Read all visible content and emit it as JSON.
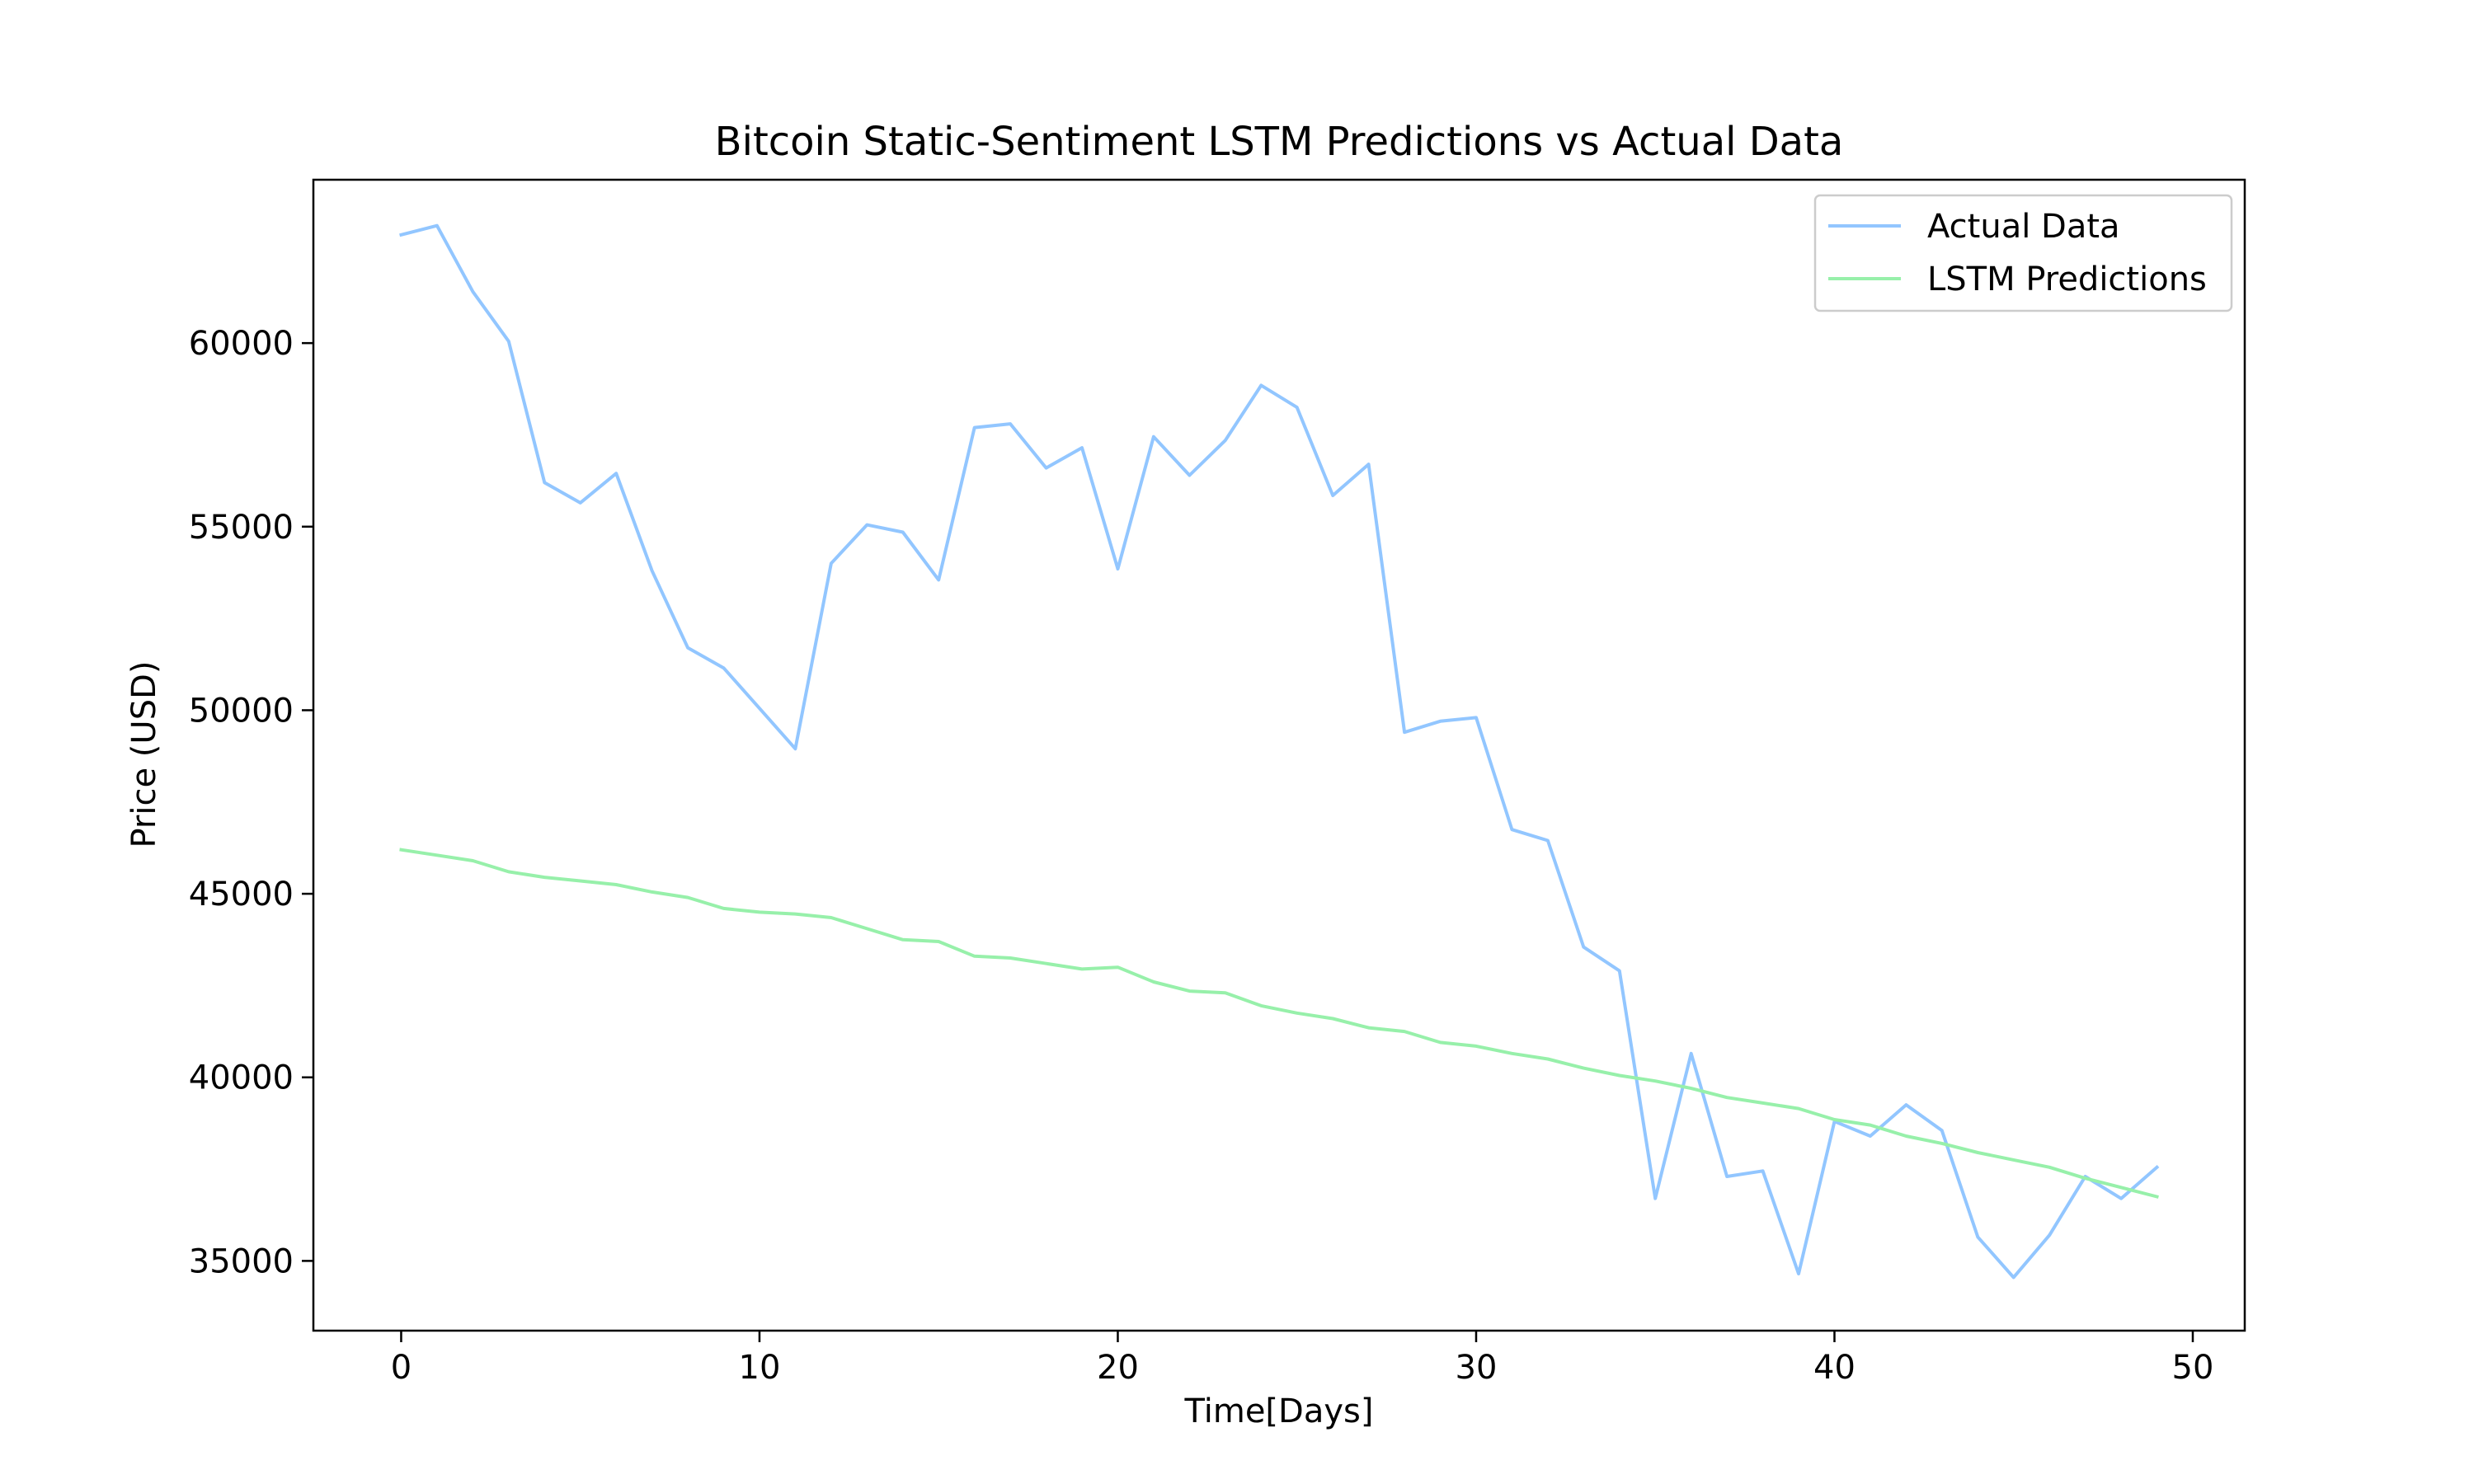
{
  "chart_data": {
    "type": "line",
    "title": "Bitcoin Static-Sentiment LSTM Predictions vs Actual Data",
    "xlabel": "Time[Days]",
    "ylabel": "Price (USD)",
    "xlim": [
      -2.45,
      51.45
    ],
    "ylim": [
      33100,
      64450
    ],
    "xticks": [
      0,
      10,
      20,
      30,
      40,
      50
    ],
    "yticks": [
      35000,
      40000,
      45000,
      50000,
      55000,
      60000
    ],
    "grid": false,
    "legend_position": "top-right",
    "x": [
      0,
      1,
      2,
      3,
      4,
      5,
      6,
      7,
      8,
      9,
      10,
      11,
      12,
      13,
      14,
      15,
      16,
      17,
      18,
      19,
      20,
      21,
      22,
      23,
      24,
      25,
      26,
      27,
      28,
      29,
      30,
      31,
      32,
      33,
      34,
      35,
      36,
      37,
      38,
      39,
      40,
      41,
      42,
      43,
      44,
      45,
      46,
      47,
      48,
      49
    ],
    "series": [
      {
        "name": "Actual Data",
        "color": "#92c6ff",
        "values": [
          62950,
          63200,
          61400,
          60050,
          56200,
          55650,
          56450,
          53800,
          51700,
          51150,
          50050,
          48950,
          54000,
          55050,
          54850,
          53550,
          57700,
          57800,
          56600,
          57150,
          53850,
          57450,
          56400,
          57350,
          58850,
          58250,
          55850,
          56700,
          49400,
          49700,
          49800,
          46750,
          46450,
          43550,
          42900,
          36700,
          40650,
          37300,
          37450,
          34650,
          38800,
          38400,
          39250,
          38550,
          35650,
          34550,
          35700,
          37300,
          36700,
          37550
        ]
      },
      {
        "name": "LSTM Predictions",
        "color": "#97f0aa",
        "values": [
          46200,
          46050,
          45900,
          45600,
          45450,
          45350,
          45250,
          45050,
          44900,
          44600,
          44500,
          44450,
          44350,
          44050,
          43750,
          43700,
          43300,
          43250,
          43100,
          42950,
          43000,
          42600,
          42350,
          42300,
          41950,
          41750,
          41600,
          41350,
          41250,
          40950,
          40850,
          40650,
          40500,
          40250,
          40050,
          39900,
          39700,
          39450,
          39300,
          39150,
          38850,
          38700,
          38400,
          38200,
          37950,
          37750,
          37550,
          37250,
          37000,
          36750
        ]
      }
    ]
  }
}
